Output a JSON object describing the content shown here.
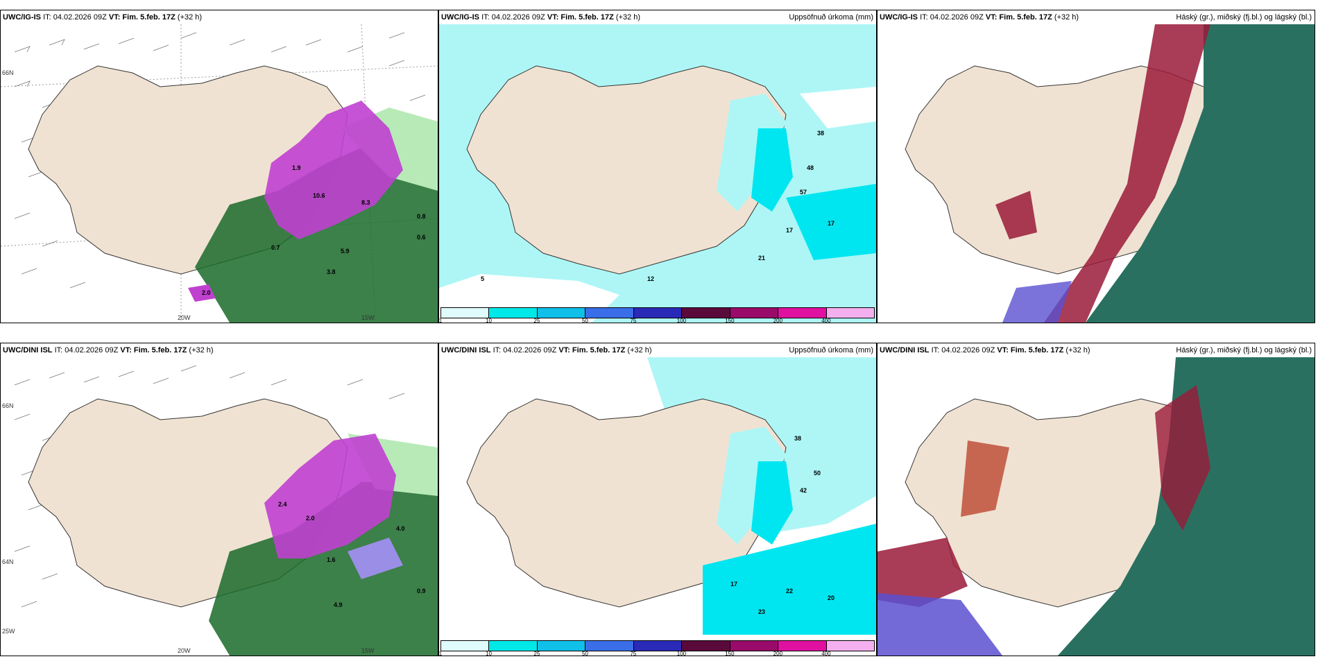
{
  "panels": [
    {
      "model": "UWC/IG-IS",
      "it": "IT: 04.02.2026 09Z",
      "vt_label": "VT:",
      "vt": "Fim. 5.feb. 17Z",
      "lead": "(+32 h)",
      "right": "",
      "type": "precip"
    },
    {
      "model": "UWC/IG-IS",
      "it": "IT: 04.02.2026 09Z",
      "vt_label": "VT:",
      "vt": "Fim. 5.feb. 17Z",
      "lead": "(+32 h)",
      "right": "Uppsöfnuð úrkoma (mm)",
      "type": "accum"
    },
    {
      "model": "UWC/IG-IS",
      "it": "IT: 04.02.2026 09Z",
      "vt_label": "VT:",
      "vt": "Fim. 5.feb. 17Z",
      "lead": "(+32 h)",
      "right": "Háský (gr.), miðský (fj.bl.) og lágský (bl.)",
      "type": "cloud"
    },
    {
      "model": "UWC/DINI ISL",
      "it": "IT: 04.02.2026 09Z",
      "vt_label": "VT:",
      "vt": "Fim. 5.feb. 17Z",
      "lead": "(+32 h)",
      "right": "",
      "type": "precip"
    },
    {
      "model": "UWC/DINI ISL",
      "it": "IT: 04.02.2026 09Z",
      "vt_label": "VT:",
      "vt": "Fim. 5.feb. 17Z",
      "lead": "(+32 h)",
      "right": "Uppsöfnuð úrkoma (mm)",
      "type": "accum"
    },
    {
      "model": "UWC/DINI ISL",
      "it": "IT: 04.02.2026 09Z",
      "vt_label": "VT:",
      "vt": "Fim. 5.feb. 17Z",
      "lead": "(+32 h)",
      "right": "Háský (gr.), miðský (fj.bl.) og lágský (bl.)",
      "type": "cloud"
    }
  ],
  "axis_labels": {
    "lat66": "66N",
    "lat64": "64N",
    "lon25": "25W",
    "lon20": "20W",
    "lon15": "15W"
  },
  "colorbar": {
    "ticks": [
      "1",
      "10",
      "25",
      "50",
      "75",
      "100",
      "150",
      "200",
      "400"
    ],
    "colors": [
      "#e0fbfb",
      "#00e8e8",
      "#10c0e8",
      "#3a6ee8",
      "#2a2ab8",
      "#5a0a3a",
      "#9a0a6a",
      "#e010a0",
      "#f4b0ee"
    ]
  },
  "colors": {
    "land": "#f0e2d2",
    "sea_cyan": "#aef6f6",
    "cyan": "#00e6f0",
    "magenta": "#c040d0",
    "green_dark": "#1a6a2a",
    "green_light": "#b8eab8",
    "cloud_red": "#9a1a3a",
    "cloud_green": "#2a7060"
  }
}
